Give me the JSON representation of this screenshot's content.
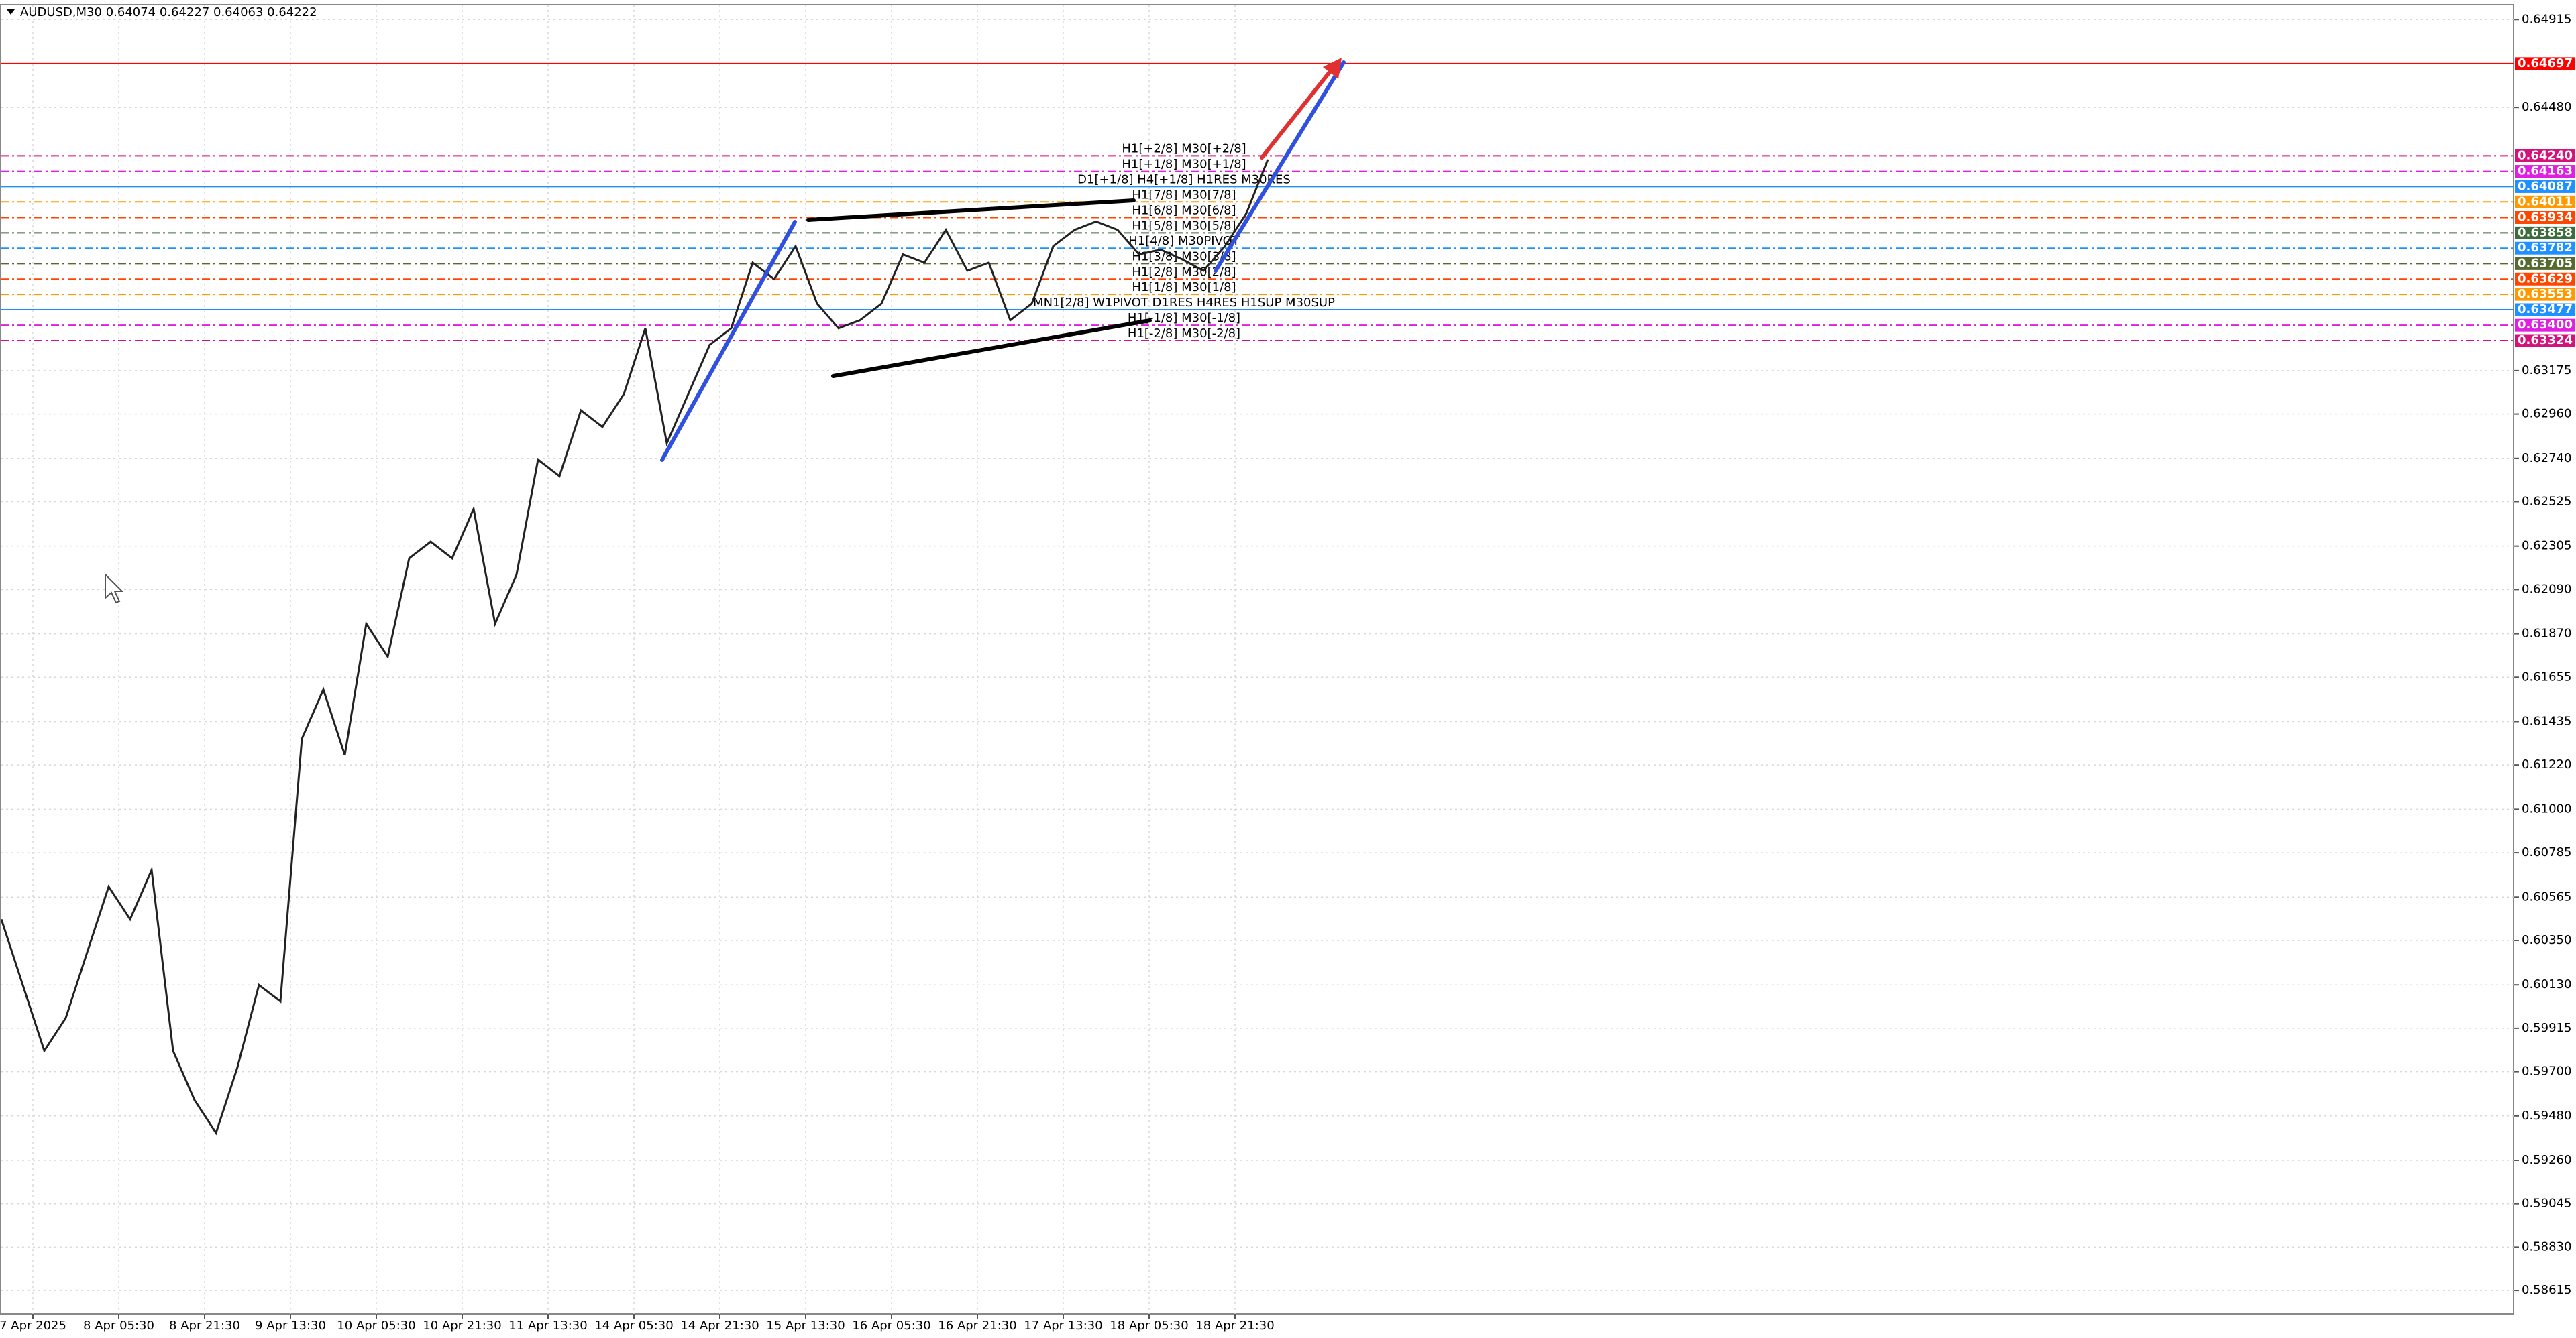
{
  "header": {
    "text": "AUDUSD,M30  0.64074 0.64227 0.64063 0.64222"
  },
  "price_axis": {
    "ylim": [
      0.58499,
      0.64989
    ],
    "ticks": [
      0.64915,
      {
        "value": 0.6448,
        "label": "0.64480"
      },
      0.63175,
      {
        "value": 0.6296,
        "label": "0.62960"
      },
      {
        "value": 0.6274,
        "label": "0.62740"
      },
      0.62525,
      0.62305,
      {
        "value": 0.6209,
        "label": "0.62090"
      },
      {
        "value": 0.6187,
        "label": "0.61870"
      },
      0.61655,
      0.61435,
      {
        "value": 0.6122,
        "label": "0.61220"
      },
      {
        "value": 0.61,
        "label": "0.61000"
      },
      0.60785,
      0.60565,
      {
        "value": 0.6035,
        "label": "0.60350"
      },
      {
        "value": 0.6013,
        "label": "0.60130"
      },
      0.59915,
      {
        "value": 0.597,
        "label": "0.59700"
      },
      {
        "value": 0.5948,
        "label": "0.59480"
      },
      {
        "value": 0.5926,
        "label": "0.59260"
      },
      0.59045,
      {
        "value": 0.5883,
        "label": "0.58830"
      },
      0.58615
    ]
  },
  "time_axis": {
    "labels": [
      "7 Apr 2025",
      "8 Apr 05:30",
      "8 Apr 21:30",
      "9 Apr 13:30",
      "10 Apr 05:30",
      "10 Apr 21:30",
      "11 Apr 13:30",
      "14 Apr 05:30",
      "14 Apr 21:30",
      "15 Apr 13:30",
      "16 Apr 05:30",
      "16 Apr 21:30",
      "17 Apr 13:30",
      "18 Apr 05:30",
      "18 Apr 21:30"
    ]
  },
  "levels": [
    {
      "value": 0.64697,
      "color": "#ff0000",
      "line_style": "solid"
    },
    {
      "value": {
        "value": 0.6424,
        "label": "0.64240"
      },
      "color": "#d4127c",
      "line_style": "dash",
      "note": "H1[+2/8] M30[+2/8]"
    },
    {
      "value": 0.64163,
      "color": "#e020e0",
      "line_style": "dash",
      "note": "H1[+1/8] M30[+1/8]"
    },
    {
      "value": 0.64087,
      "color": "#1e90ff",
      "line_style": "solid",
      "note": "D1[+1/8] H4[+1/8] H1RES M30RES"
    },
    {
      "value": 0.64011,
      "color": "#ff9900",
      "line_style": "dash",
      "note": "H1[7/8] M30[7/8]"
    },
    {
      "value": 0.63934,
      "color": "#ff4500",
      "line_style": "dash",
      "note": "H1[6/8] M30[6/8]"
    },
    {
      "value": 0.63858,
      "color": "#3c6e3c",
      "line_style": "dash",
      "note": "H1[5/8] M30[5/8]"
    },
    {
      "value": 0.63782,
      "color": "#1e90ff",
      "line_style": "dash",
      "note": "H1[4/8] M30PIVOT"
    },
    {
      "value": 0.63705,
      "color": "#556b2f",
      "line_style": "dash",
      "note": "H1[3/8] M30[3/8]"
    },
    {
      "value": 0.63629,
      "color": "#ff4500",
      "line_style": "dash",
      "note": "H1[2/8] M30[2/8]"
    },
    {
      "value": 0.63553,
      "color": "#ff9900",
      "line_style": "dash",
      "note": "H1[1/8] M30[1/8]"
    },
    {
      "value": 0.63477,
      "color": "#1e90ff",
      "line_style": "solid",
      "note": "MN1[2/8] W1PIVOT D1RES H4RES H1SUP M30SUP"
    },
    {
      "value": {
        "value": 0.634,
        "label": "0.63400"
      },
      "color": "#e020e0",
      "line_style": "dash",
      "note": "H1[-1/8] M30[-1/8]"
    },
    {
      "value": 0.63324,
      "color": "#d4127c",
      "line_style": "dash",
      "note": "H1[-2/8] M30[-2/8]"
    }
  ],
  "price_path": {
    "closes": [
      0.60455,
      0.60129,
      0.59803,
      0.59966,
      0.60292,
      0.60617,
      0.60455,
      0.60699,
      0.59803,
      0.59559,
      0.59396,
      0.59722,
      0.60129,
      0.60048,
      0.6135,
      0.61594,
      0.61269,
      0.6192,
      0.61757,
      0.62245,
      0.62327,
      0.62245,
      0.62489,
      0.6192,
      0.62164,
      0.62734,
      0.62652,
      0.62978,
      0.62896,
      0.63059,
      0.63385,
      0.62815,
      0.63059,
      0.63303,
      0.63385,
      0.6371,
      0.63629,
      0.63792,
      0.63507,
      0.63385,
      0.63425,
      0.63507,
      0.63751,
      0.6371,
      0.63873,
      0.6367,
      0.6371,
      0.63425,
      0.63507,
      0.63792,
      0.63873,
      0.63914,
      0.63873,
      0.63751,
      0.63775,
      0.63727,
      0.6367,
      0.63792,
      0.63955,
      0.64222
    ]
  }
}
